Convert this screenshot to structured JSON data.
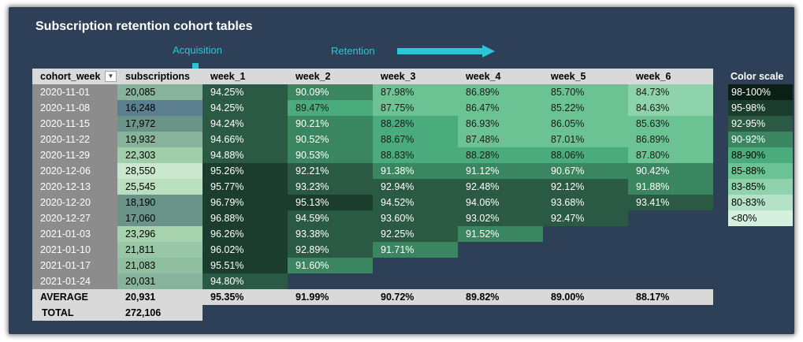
{
  "title": "Subscription retention cohort tables",
  "labels": {
    "acquisition": "Acquisition",
    "retention": "Retention"
  },
  "headers": [
    "cohort_week",
    "subscriptions",
    "week_1",
    "week_2",
    "week_3",
    "week_4",
    "week_5",
    "week_6"
  ],
  "filter_icon": "dropdown-filter-icon",
  "rows": [
    {
      "cohort": "2020-11-01",
      "subs": "20,085",
      "weeks": [
        "94.25%",
        "90.09%",
        "87.98%",
        "86.89%",
        "85.70%",
        "84.73%"
      ]
    },
    {
      "cohort": "2020-11-08",
      "subs": "16,248",
      "weeks": [
        "94.25%",
        "89.47%",
        "87.75%",
        "86.47%",
        "85.22%",
        "84.63%"
      ]
    },
    {
      "cohort": "2020-11-15",
      "subs": "17,972",
      "weeks": [
        "94.24%",
        "90.21%",
        "88.28%",
        "86.93%",
        "86.05%",
        "85.63%"
      ]
    },
    {
      "cohort": "2020-11-22",
      "subs": "19,932",
      "weeks": [
        "94.66%",
        "90.52%",
        "88.67%",
        "87.48%",
        "87.01%",
        "86.89%"
      ]
    },
    {
      "cohort": "2020-11-29",
      "subs": "22,303",
      "weeks": [
        "94.88%",
        "90.53%",
        "88.83%",
        "88.28%",
        "88.06%",
        "87.80%"
      ]
    },
    {
      "cohort": "2020-12-06",
      "subs": "28,550",
      "weeks": [
        "95.26%",
        "92.21%",
        "91.38%",
        "91.12%",
        "90.67%",
        "90.42%"
      ]
    },
    {
      "cohort": "2020-12-13",
      "subs": "25,545",
      "weeks": [
        "95.77%",
        "93.23%",
        "92.94%",
        "92.48%",
        "92.12%",
        "91.88%"
      ]
    },
    {
      "cohort": "2020-12-20",
      "subs": "18,190",
      "weeks": [
        "96.79%",
        "95.13%",
        "94.52%",
        "94.06%",
        "93.68%",
        "93.41%"
      ]
    },
    {
      "cohort": "2020-12-27",
      "subs": "17,060",
      "weeks": [
        "96.88%",
        "94.59%",
        "93.60%",
        "93.02%",
        "92.47%"
      ]
    },
    {
      "cohort": "2021-01-03",
      "subs": "23,296",
      "weeks": [
        "96.26%",
        "93.38%",
        "92.25%",
        "91.52%"
      ]
    },
    {
      "cohort": "2021-01-10",
      "subs": "21,811",
      "weeks": [
        "96.02%",
        "92.89%",
        "91.71%"
      ]
    },
    {
      "cohort": "2021-01-17",
      "subs": "21,083",
      "weeks": [
        "95.51%",
        "91.60%"
      ]
    },
    {
      "cohort": "2021-01-24",
      "subs": "20,031",
      "weeks": [
        "94.80%"
      ]
    }
  ],
  "average": {
    "label": "AVERAGE",
    "subs": "20,931",
    "weeks": [
      "95.35%",
      "91.99%",
      "90.72%",
      "89.82%",
      "89.00%",
      "88.17%"
    ]
  },
  "total": {
    "label": "TOTAL",
    "subs": "272,106"
  },
  "color_scale": {
    "title": "Color scale",
    "items": [
      {
        "label": "98-100%",
        "color": "#0b1f16"
      },
      {
        "label": "95-98%",
        "color": "#1b3d2e"
      },
      {
        "label": "92-95%",
        "color": "#2b5a44"
      },
      {
        "label": "90-92%",
        "color": "#3a8660"
      },
      {
        "label": "88-90%",
        "color": "#4aac7c"
      },
      {
        "label": "85-88%",
        "color": "#6bc393"
      },
      {
        "label": "83-85%",
        "color": "#8ed3ab"
      },
      {
        "label": "80-83%",
        "color": "#b5e2c7"
      },
      {
        "label": "<80%",
        "color": "#d6f0e0"
      }
    ]
  },
  "subscription_colors": {
    "16248": "#5b7f8f",
    "17060": "#6a9389",
    "17972": "#6a9389",
    "18190": "#6a9389",
    "19932": "#87b39c",
    "20031": "#87b39c",
    "20085": "#87b39c",
    "21083": "#8fbf9f",
    "21811": "#97c7a6",
    "22303": "#a0cdaa",
    "23296": "#a6d2ad",
    "25545": "#b9dfbf",
    "28550": "#cbe8cf"
  }
}
